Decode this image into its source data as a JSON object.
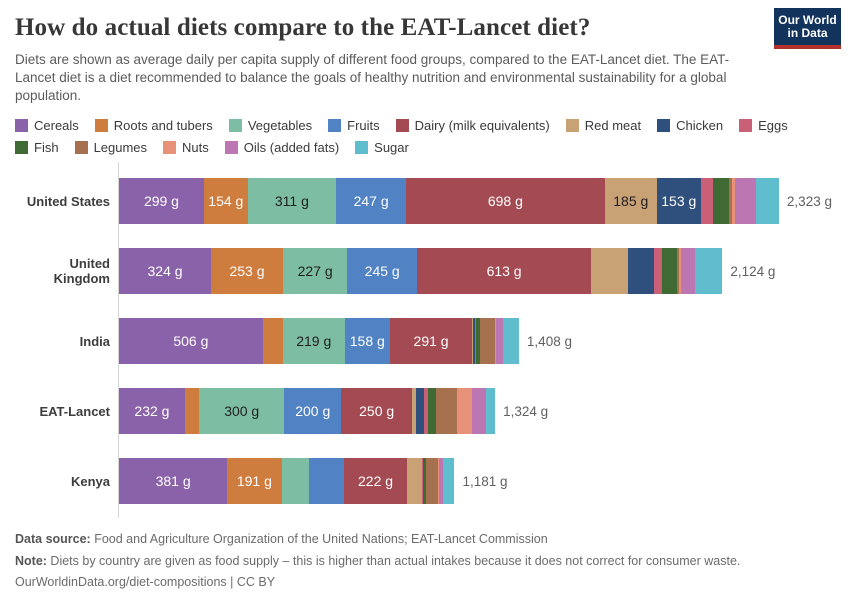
{
  "header": {
    "title": "How do actual diets compare to the EAT-Lancet diet?",
    "subtitle": "Diets are shown as average daily per capita supply of different food groups, compared to the EAT-Lancet diet. The EAT-Lancet diet is a diet recommended to balance the goals of healthy nutrition and environmental sustainability for a global population.",
    "logo": {
      "line1": "Our World",
      "line2": "in Data",
      "bg_color": "#12335b",
      "accent_color": "#b1302a"
    }
  },
  "chart_data": {
    "type": "bar",
    "stacked": true,
    "orientation": "horizontal",
    "unit": "g",
    "title": "How do actual diets compare to the EAT-Lancet diet?",
    "x_max_g": 2323,
    "legend_position": "top",
    "grid": false,
    "categories": [
      "United States",
      "United Kingdom",
      "India",
      "EAT-Lancet",
      "Kenya"
    ],
    "food_groups": [
      {
        "name": "Cereals",
        "color": "#8a62a9"
      },
      {
        "name": "Roots and tubers",
        "color": "#cf7d3e"
      },
      {
        "name": "Vegetables",
        "color": "#7dbda4",
        "dark_text": true
      },
      {
        "name": "Fruits",
        "color": "#5082c4"
      },
      {
        "name": "Dairy (milk equivalents)",
        "color": "#a44a52"
      },
      {
        "name": "Red meat",
        "color": "#c8a175",
        "dark_text": true
      },
      {
        "name": "Chicken",
        "color": "#2f4f7d"
      },
      {
        "name": "Eggs",
        "color": "#ca6077"
      },
      {
        "name": "Fish",
        "color": "#406a33"
      },
      {
        "name": "Legumes",
        "color": "#a5714f"
      },
      {
        "name": "Nuts",
        "color": "#e89179"
      },
      {
        "name": "Oils (added fats)",
        "color": "#bc77b3"
      },
      {
        "name": "Sugar",
        "color": "#5fbdcd"
      }
    ],
    "rows": [
      {
        "label": "United States",
        "total_g": 2323,
        "total_label": "2,323 g",
        "values": [
          299,
          154,
          311,
          247,
          698,
          185,
          153,
          44,
          57,
          11,
          11,
          72,
          81
        ],
        "segment_labels": [
          "299 g",
          "154 g",
          "311 g",
          "247 g",
          "698 g",
          "185 g",
          "153 g",
          null,
          null,
          null,
          null,
          null,
          null
        ]
      },
      {
        "label": "United Kingdom",
        "total_g": 2124,
        "total_label": "2,124 g",
        "values": [
          324,
          253,
          227,
          245,
          613,
          131,
          91,
          28,
          51,
          8,
          7,
          48,
          98
        ],
        "segment_labels": [
          "324 g",
          "253 g",
          "227 g",
          "245 g",
          "613 g",
          null,
          null,
          null,
          null,
          null,
          null,
          null,
          null
        ]
      },
      {
        "label": "India",
        "total_g": 1408,
        "total_label": "1,408 g",
        "values": [
          506,
          70,
          219,
          158,
          291,
          2,
          8,
          4,
          14,
          50,
          4,
          25,
          57
        ],
        "segment_labels": [
          "506 g",
          null,
          "219 g",
          "158 g",
          "291 g",
          null,
          null,
          null,
          null,
          null,
          null,
          null,
          null
        ]
      },
      {
        "label": "EAT-Lancet",
        "total_g": 1324,
        "total_label": "1,324 g",
        "values": [
          232,
          50,
          300,
          200,
          250,
          14,
          29,
          13,
          28,
          75,
          50,
          52,
          31
        ],
        "segment_labels": [
          "232 g",
          null,
          "300 g",
          "200 g",
          "250 g",
          null,
          null,
          null,
          null,
          null,
          null,
          null,
          null
        ]
      },
      {
        "label": "Kenya",
        "total_g": 1181,
        "total_label": "1,181 g",
        "values": [
          381,
          191,
          98,
          122,
          222,
          52,
          2,
          2,
          9,
          45,
          2,
          15,
          40
        ],
        "segment_labels": [
          "381 g",
          "191 g",
          null,
          null,
          "222 g",
          null,
          null,
          null,
          null,
          null,
          null,
          null,
          null
        ]
      }
    ]
  },
  "footer": {
    "datasource_label": "Data source:",
    "datasource_text": " Food and Agriculture Organization of the United Nations; EAT-Lancet Commission",
    "note_label": "Note:",
    "note_text": " Diets by country are given as food supply – this is higher than actual intakes because it does not correct for consumer waste.",
    "citation": "OurWorldinData.org/diet-compositions | CC BY"
  }
}
